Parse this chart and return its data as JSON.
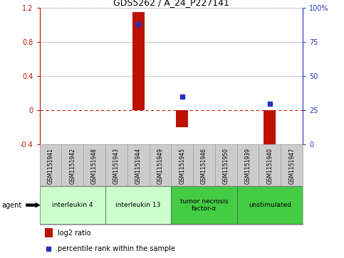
{
  "title": "GDS5262 / A_24_P227141",
  "samples": [
    "GSM1151941",
    "GSM1151942",
    "GSM1151948",
    "GSM1151943",
    "GSM1151944",
    "GSM1151949",
    "GSM1151945",
    "GSM1151946",
    "GSM1151950",
    "GSM1151939",
    "GSM1151940",
    "GSM1151947"
  ],
  "log2_ratio": [
    0,
    0,
    0,
    0,
    1.15,
    0,
    -0.2,
    0,
    0,
    0,
    -0.45,
    0
  ],
  "percentile_rank": [
    null,
    null,
    null,
    null,
    88,
    null,
    35,
    null,
    null,
    null,
    30,
    null
  ],
  "ylim": [
    -0.4,
    1.2
  ],
  "y2lim": [
    0,
    100
  ],
  "yticks_left": [
    -0.4,
    0.0,
    0.4,
    0.8,
    1.2
  ],
  "yticks_right": [
    0,
    25,
    50,
    75,
    100
  ],
  "ytick_labels_left": [
    "-0.4",
    "0",
    "0.4",
    "0.8",
    "1.2"
  ],
  "ytick_labels_right": [
    "0",
    "25",
    "50",
    "75",
    "100%"
  ],
  "groups": [
    {
      "label": "interleukin 4",
      "start": 0,
      "end": 2,
      "color": "#ccffcc"
    },
    {
      "label": "interleukin 13",
      "start": 3,
      "end": 5,
      "color": "#ccffcc"
    },
    {
      "label": "tumor necrosis\nfactor-α",
      "start": 6,
      "end": 8,
      "color": "#44cc44"
    },
    {
      "label": "unstimulated",
      "start": 9,
      "end": 11,
      "color": "#44cc44"
    }
  ],
  "bar_color": "#bb1100",
  "dot_color": "#2233bb",
  "gridline_color": "#555555",
  "zero_line_color": "#bb2200",
  "bg_color": "#ffffff",
  "sample_bg_color": "#cccccc",
  "legend_bar_label": "log2 ratio",
  "legend_dot_label": "percentile rank within the sample",
  "agent_label": "agent"
}
